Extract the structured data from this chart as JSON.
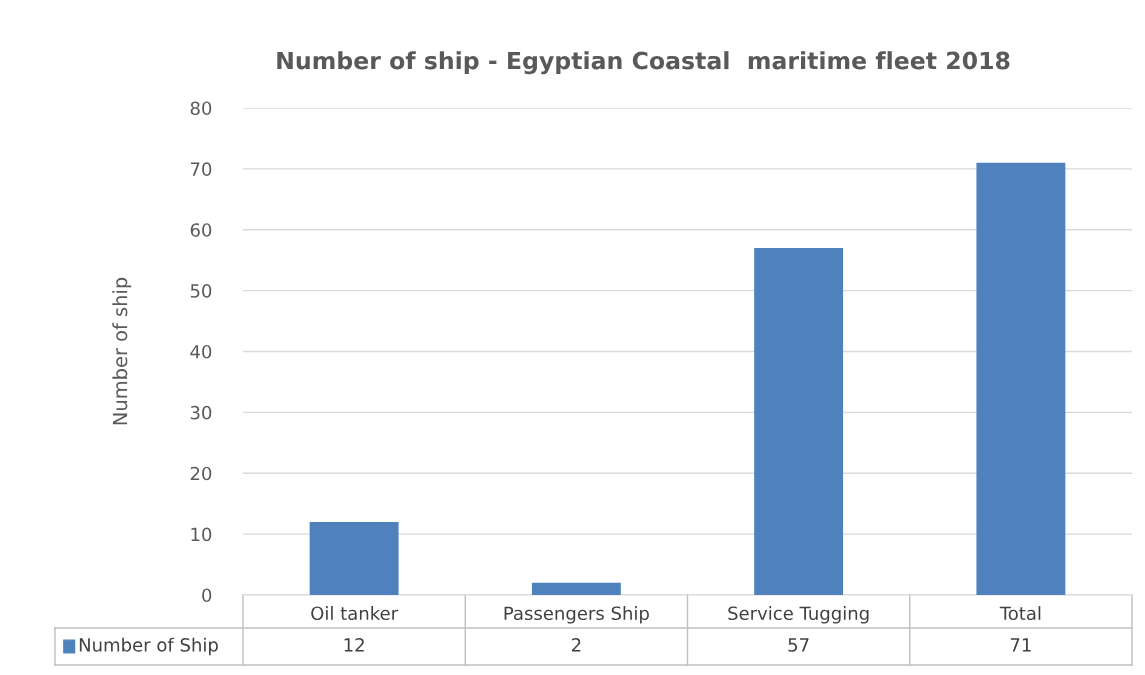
{
  "chart_data": {
    "type": "bar",
    "title": "Number of ship - Egyptian Coastal  maritime fleet 2018",
    "ylabel": "Number of ship",
    "categories": [
      "Oil tanker",
      "Passengers Ship",
      "Service Tugging",
      "Total"
    ],
    "series": [
      {
        "name": "Number of Ship",
        "color": "#4f81bd",
        "values": [
          12,
          2,
          57,
          71
        ]
      }
    ],
    "ylim": [
      0,
      80
    ],
    "yticks": [
      0,
      10,
      20,
      30,
      40,
      50,
      60,
      70,
      80
    ],
    "grid": "y",
    "legend": "bottom",
    "data_labels": true
  }
}
